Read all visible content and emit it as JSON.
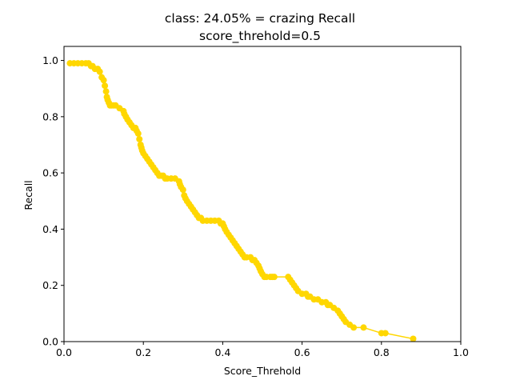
{
  "chart_data": {
    "type": "line",
    "title": "class: 24.05% = crazing Recall",
    "subtitle": "score_threhold=0.5",
    "xlabel": "Score_Threhold",
    "ylabel": "Recall",
    "xlim": [
      0,
      1
    ],
    "ylim": [
      0,
      1.05
    ],
    "xticks": [
      "0.0",
      "0.2",
      "0.4",
      "0.6",
      "0.8",
      "1.0"
    ],
    "yticks": [
      "0.0",
      "0.2",
      "0.4",
      "0.6",
      "0.8",
      "1.0"
    ],
    "grid": false,
    "legend": "none",
    "series": [
      {
        "color": "#FFD700",
        "marker": "circle",
        "x": [
          0.015,
          0.025,
          0.035,
          0.045,
          0.055,
          0.062,
          0.068,
          0.072,
          0.078,
          0.085,
          0.09,
          0.095,
          0.1,
          0.103,
          0.106,
          0.108,
          0.11,
          0.113,
          0.116,
          0.12,
          0.125,
          0.13,
          0.14,
          0.15,
          0.152,
          0.156,
          0.16,
          0.165,
          0.17,
          0.175,
          0.18,
          0.183,
          0.187,
          0.19,
          0.193,
          0.195,
          0.197,
          0.2,
          0.205,
          0.21,
          0.215,
          0.22,
          0.225,
          0.23,
          0.235,
          0.24,
          0.245,
          0.25,
          0.255,
          0.26,
          0.27,
          0.28,
          0.29,
          0.292,
          0.295,
          0.3,
          0.303,
          0.306,
          0.31,
          0.315,
          0.32,
          0.325,
          0.33,
          0.335,
          0.34,
          0.345,
          0.35,
          0.36,
          0.37,
          0.38,
          0.39,
          0.395,
          0.4,
          0.403,
          0.406,
          0.41,
          0.415,
          0.42,
          0.425,
          0.43,
          0.435,
          0.44,
          0.445,
          0.45,
          0.455,
          0.46,
          0.47,
          0.475,
          0.48,
          0.485,
          0.49,
          0.493,
          0.496,
          0.5,
          0.505,
          0.51,
          0.52,
          0.525,
          0.53,
          0.565,
          0.57,
          0.575,
          0.58,
          0.585,
          0.59,
          0.6,
          0.61,
          0.615,
          0.62,
          0.63,
          0.64,
          0.65,
          0.66,
          0.665,
          0.67,
          0.68,
          0.69,
          0.695,
          0.7,
          0.705,
          0.71,
          0.72,
          0.73,
          0.755,
          0.8,
          0.81,
          0.88
        ],
        "y": [
          0.99,
          0.99,
          0.99,
          0.99,
          0.99,
          0.99,
          0.98,
          0.98,
          0.97,
          0.97,
          0.96,
          0.94,
          0.93,
          0.91,
          0.89,
          0.87,
          0.86,
          0.85,
          0.84,
          0.84,
          0.84,
          0.84,
          0.83,
          0.82,
          0.81,
          0.8,
          0.79,
          0.78,
          0.77,
          0.76,
          0.76,
          0.75,
          0.74,
          0.72,
          0.7,
          0.69,
          0.68,
          0.67,
          0.66,
          0.65,
          0.64,
          0.63,
          0.62,
          0.61,
          0.6,
          0.59,
          0.59,
          0.59,
          0.58,
          0.58,
          0.58,
          0.58,
          0.57,
          0.56,
          0.55,
          0.54,
          0.52,
          0.51,
          0.5,
          0.49,
          0.48,
          0.47,
          0.46,
          0.45,
          0.44,
          0.44,
          0.43,
          0.43,
          0.43,
          0.43,
          0.43,
          0.42,
          0.42,
          0.41,
          0.4,
          0.39,
          0.38,
          0.37,
          0.36,
          0.35,
          0.34,
          0.33,
          0.32,
          0.31,
          0.3,
          0.3,
          0.3,
          0.29,
          0.29,
          0.28,
          0.27,
          0.26,
          0.25,
          0.24,
          0.23,
          0.23,
          0.23,
          0.23,
          0.23,
          0.23,
          0.22,
          0.21,
          0.2,
          0.19,
          0.18,
          0.17,
          0.17,
          0.16,
          0.16,
          0.15,
          0.15,
          0.14,
          0.14,
          0.13,
          0.13,
          0.12,
          0.11,
          0.1,
          0.09,
          0.08,
          0.07,
          0.06,
          0.05,
          0.05,
          0.03,
          0.03,
          0.01
        ]
      }
    ]
  }
}
